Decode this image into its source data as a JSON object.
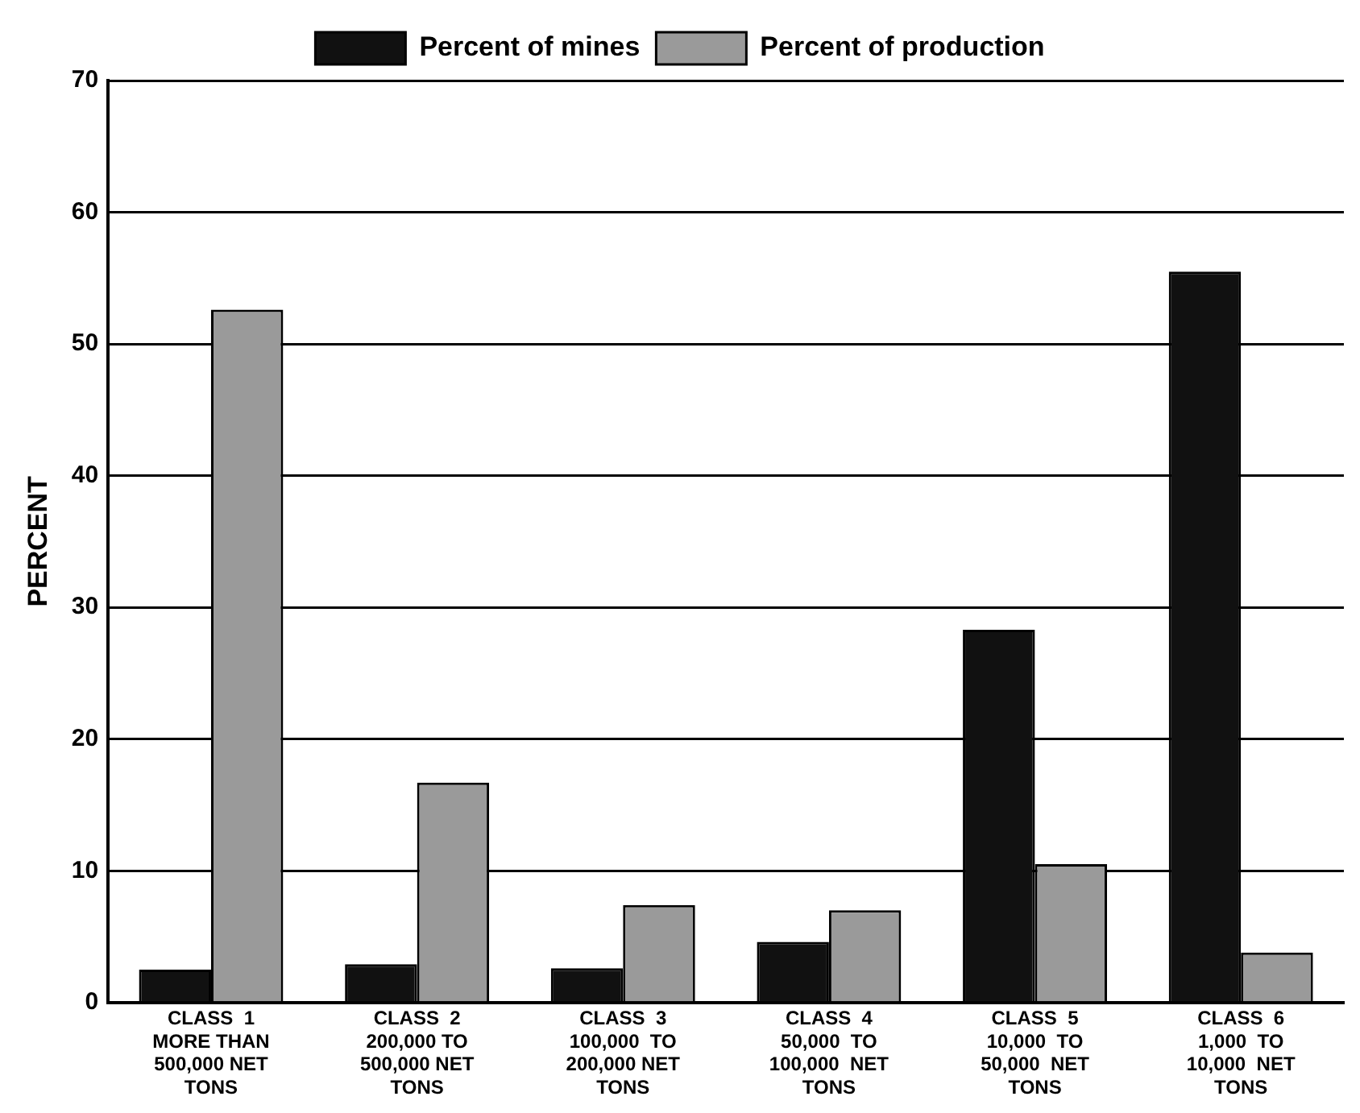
{
  "chart_data": {
    "type": "bar",
    "ylabel": "PERCENT",
    "categories": [
      "CLASS  1\nMORE THAN\n500,000 NET\nTONS",
      "CLASS  2\n200,000 TO\n500,000 NET\nTONS",
      "CLASS  3\n100,000  TO\n200,000 NET\nTONS",
      "CLASS  4\n50,000  TO\n100,000  NET\nTONS",
      "CLASS  5\n10,000  TO\n50,000  NET\nTONS",
      "CLASS  6\n1,000  TO\n10,000  NET\nTONS"
    ],
    "series": [
      {
        "name": "Percent of mines",
        "color": "#111111",
        "values": [
          2.5,
          2.9,
          2.6,
          4.6,
          28.3,
          55.5
        ]
      },
      {
        "name": "Percent of production",
        "color": "#9a9a9a",
        "values": [
          52.6,
          16.7,
          7.4,
          7.0,
          10.5,
          3.8
        ]
      }
    ],
    "ylim": [
      0,
      70
    ],
    "yticks": [
      0,
      10,
      20,
      30,
      40,
      50,
      60,
      70
    ],
    "grid": "y",
    "legend": "top"
  }
}
